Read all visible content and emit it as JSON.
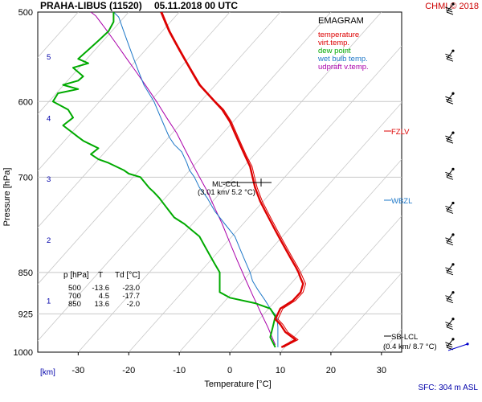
{
  "header": {
    "station": "PRAHA-LIBUS (11520)",
    "datetime": "05.11.2018 00 UTC",
    "credit": "CHMI © 2018"
  },
  "legend": {
    "title": "EMAGRAM",
    "items": [
      {
        "label": "temperature",
        "color": "#dd0000"
      },
      {
        "label": "virt.temp.",
        "color": "#dd0000"
      },
      {
        "label": "dew point",
        "color": "#00aa00"
      },
      {
        "label": "wet bulb temp.",
        "color": "#1e78c8"
      },
      {
        "label": "udpraft v.temp.",
        "color": "#aa00aa"
      }
    ]
  },
  "table": {
    "headers": [
      "p [hPa]",
      "T",
      "Td [°C]"
    ],
    "rows": [
      [
        "500",
        "-13.6",
        "-23.0"
      ],
      [
        "700",
        "4.5",
        "-17.7"
      ],
      [
        "850",
        "13.6",
        "-2.0"
      ]
    ]
  },
  "annotations": {
    "ml_ccl_line1": "ML-CCL",
    "ml_ccl_line2": "(3.01 km/ 5.2 °C)",
    "fzlv": "FZLV",
    "wbzl": "WBZL",
    "sb_lcl_line1": "SB-LCL",
    "sb_lcl_line2": "(0.4 km/ 8.7 °C)"
  },
  "footer": {
    "km_label": "[km]",
    "sfc": "SFC: 304 m ASL"
  },
  "colors": {
    "temperature": "#dd0000",
    "dewpoint": "#00aa00",
    "wetbulb": "#1e78c8",
    "updraft": "#aa00aa",
    "grid": "#c8c8c8",
    "km": "#0000aa"
  },
  "chart_data": {
    "type": "line",
    "title": "PRAHA-LIBUS (11520) 05.11.2018 00 UTC",
    "xlabel": "Temperature [°C]",
    "ylabel": "Pressure [hPa]",
    "xlim": [
      -38,
      34
    ],
    "ylim": [
      1000,
      500
    ],
    "y_scale": "log",
    "x_ticks": [
      -30,
      -20,
      -10,
      0,
      10,
      20,
      30
    ],
    "y_ticks": [
      500,
      600,
      700,
      850,
      925,
      1000
    ],
    "km_ticks": [
      {
        "km": "1",
        "p": 900
      },
      {
        "km": "2",
        "p": 795
      },
      {
        "km": "3",
        "p": 702
      },
      {
        "km": "4",
        "p": 620
      },
      {
        "km": "5",
        "p": 547
      }
    ],
    "series": [
      {
        "name": "temperature",
        "points": [
          [
            10.2,
            990
          ],
          [
            13,
            975
          ],
          [
            11,
            960
          ],
          [
            10,
            945
          ],
          [
            9,
            935
          ],
          [
            10,
            915
          ],
          [
            12.5,
            900
          ],
          [
            14,
            885
          ],
          [
            14.5,
            870
          ],
          [
            14,
            860
          ],
          [
            13.6,
            850
          ],
          [
            13,
            840
          ],
          [
            12,
            825
          ],
          [
            11,
            810
          ],
          [
            10,
            795
          ],
          [
            9,
            780
          ],
          [
            8,
            765
          ],
          [
            7,
            750
          ],
          [
            6,
            735
          ],
          [
            5,
            715
          ],
          [
            4.5,
            700
          ],
          [
            4,
            685
          ],
          [
            3,
            670
          ],
          [
            2,
            655
          ],
          [
            1,
            640
          ],
          [
            0,
            625
          ],
          [
            -1.5,
            610
          ],
          [
            -3,
            600
          ],
          [
            -4.5,
            590
          ],
          [
            -6,
            580
          ],
          [
            -7,
            570
          ],
          [
            -8,
            560
          ],
          [
            -9,
            550
          ],
          [
            -10,
            540
          ],
          [
            -11,
            530
          ],
          [
            -12,
            520
          ],
          [
            -12.8,
            510
          ],
          [
            -13.6,
            500
          ]
        ]
      },
      {
        "name": "virt.temp.",
        "points": [
          [
            10.6,
            990
          ],
          [
            13.5,
            975
          ],
          [
            11.5,
            960
          ],
          [
            10.5,
            945
          ],
          [
            9.5,
            935
          ],
          [
            10.5,
            915
          ],
          [
            13,
            900
          ],
          [
            14.5,
            885
          ],
          [
            15,
            870
          ],
          [
            14.5,
            860
          ],
          [
            14,
            850
          ],
          [
            13.4,
            840
          ],
          [
            12.4,
            825
          ],
          [
            11.4,
            810
          ],
          [
            10.4,
            795
          ],
          [
            9.4,
            780
          ],
          [
            8.4,
            765
          ],
          [
            7.4,
            750
          ],
          [
            6.4,
            735
          ],
          [
            5.4,
            715
          ],
          [
            4.9,
            700
          ],
          [
            4.4,
            685
          ],
          [
            3.3,
            670
          ],
          [
            2.3,
            655
          ],
          [
            1.3,
            640
          ],
          [
            0.3,
            625
          ],
          [
            -1.2,
            610
          ],
          [
            -2.8,
            600
          ],
          [
            -4.3,
            590
          ],
          [
            -5.8,
            580
          ],
          [
            -6.8,
            570
          ],
          [
            -7.8,
            560
          ],
          [
            -8.8,
            550
          ],
          [
            -9.8,
            540
          ],
          [
            -10.8,
            530
          ],
          [
            -11.8,
            520
          ],
          [
            -12.6,
            510
          ],
          [
            -13.4,
            500
          ]
        ]
      },
      {
        "name": "dew point",
        "points": [
          [
            9,
            990
          ],
          [
            8,
            970
          ],
          [
            8.5,
            950
          ],
          [
            9,
            930
          ],
          [
            8,
            915
          ],
          [
            5,
            905
          ],
          [
            0,
            895
          ],
          [
            -2,
            885
          ],
          [
            -2,
            870
          ],
          [
            -2,
            850
          ],
          [
            -3,
            835
          ],
          [
            -4,
            820
          ],
          [
            -5,
            805
          ],
          [
            -6,
            790
          ],
          [
            -7.5,
            780
          ],
          [
            -9,
            770
          ],
          [
            -11,
            760
          ],
          [
            -12,
            750
          ],
          [
            -13,
            740
          ],
          [
            -14,
            730
          ],
          [
            -15,
            722
          ],
          [
            -16,
            715
          ],
          [
            -17.7,
            700
          ],
          [
            -20,
            695
          ],
          [
            -21,
            690
          ],
          [
            -24,
            680
          ],
          [
            -26,
            675
          ],
          [
            -27.5,
            668
          ],
          [
            -26,
            660
          ],
          [
            -27.5,
            655
          ],
          [
            -29,
            650
          ],
          [
            -30,
            645
          ],
          [
            -31,
            640
          ],
          [
            -33,
            630
          ],
          [
            -31,
            620
          ],
          [
            -32,
            610
          ],
          [
            -35,
            600
          ],
          [
            -34,
            590
          ],
          [
            -30,
            585
          ],
          [
            -33,
            580
          ],
          [
            -30,
            575
          ],
          [
            -29,
            570
          ],
          [
            -31,
            560
          ],
          [
            -28,
            555
          ],
          [
            -30,
            550
          ],
          [
            -28,
            540
          ],
          [
            -26,
            530
          ],
          [
            -24,
            520
          ],
          [
            -23,
            510
          ],
          [
            -23,
            500
          ]
        ]
      },
      {
        "name": "wet bulb temp.",
        "points": [
          [
            9.5,
            990
          ],
          [
            9.5,
            970
          ],
          [
            9.5,
            950
          ],
          [
            9.3,
            930
          ],
          [
            8,
            915
          ],
          [
            7,
            900
          ],
          [
            5.5,
            880
          ],
          [
            4.5,
            865
          ],
          [
            4,
            850
          ],
          [
            3,
            830
          ],
          [
            2,
            810
          ],
          [
            1,
            790
          ],
          [
            -1,
            770
          ],
          [
            -3,
            750
          ],
          [
            -4.5,
            730
          ],
          [
            -6,
            715
          ],
          [
            -7,
            700
          ],
          [
            -8,
            690
          ],
          [
            -8.5,
            680
          ],
          [
            -9.5,
            665
          ],
          [
            -11,
            655
          ],
          [
            -12,
            645
          ],
          [
            -13,
            630
          ],
          [
            -14,
            615
          ],
          [
            -15,
            600
          ],
          [
            -16,
            590
          ],
          [
            -17,
            580
          ],
          [
            -18,
            565
          ],
          [
            -19,
            550
          ],
          [
            -20,
            535
          ],
          [
            -21,
            520
          ],
          [
            -22,
            505
          ],
          [
            -23,
            500
          ]
        ]
      },
      {
        "name": "udpraft v.temp.",
        "points": [
          [
            9,
            985
          ],
          [
            7.5,
            950
          ],
          [
            6,
            920
          ],
          [
            4.5,
            890
          ],
          [
            3,
            860
          ],
          [
            1.5,
            830
          ],
          [
            0,
            800
          ],
          [
            -1.5,
            770
          ],
          [
            -3,
            745
          ],
          [
            -4.5,
            720
          ],
          [
            -6,
            700
          ],
          [
            -7.5,
            680
          ],
          [
            -9,
            660
          ],
          [
            -10.5,
            640
          ],
          [
            -12.5,
            620
          ],
          [
            -14.5,
            600
          ],
          [
            -16.5,
            582
          ],
          [
            -18.5,
            565
          ],
          [
            -20.5,
            549
          ],
          [
            -22.5,
            533
          ],
          [
            -24.5,
            518
          ],
          [
            -26.5,
            504
          ],
          [
            -27.5,
            500
          ]
        ]
      }
    ],
    "levels": [
      {
        "name": "FZLV",
        "p": 640
      },
      {
        "name": "WBZL",
        "p": 725
      },
      {
        "name": "SB-LCL",
        "p": 970
      },
      {
        "name": "ML-CCL",
        "p": 703
      }
    ],
    "wind_levels_hPa": [
      500,
      550,
      600,
      650,
      700,
      750,
      800,
      850,
      900,
      950,
      990
    ]
  }
}
